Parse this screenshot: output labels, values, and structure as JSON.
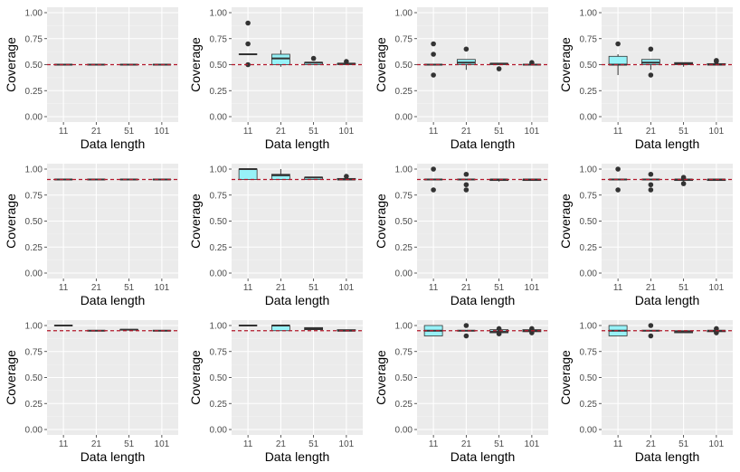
{
  "colors": {
    "panel_bg": "#ebebeb",
    "grid_major": "#ffffff",
    "grid_minor": "#f5f5f5",
    "box_fill": "#97f2f8",
    "box_stroke": "#333333",
    "outlier": "#333333",
    "reference_line": "#b2182b"
  },
  "chart_data": [
    {
      "type": "box",
      "xlabel": "Data length",
      "ylabel": "Coverage",
      "ylim": [
        0,
        1
      ],
      "y_ticks": [
        "0.00",
        "0.25",
        "0.50",
        "0.75",
        "1.00"
      ],
      "y_tick_values": [
        0,
        0.25,
        0.5,
        0.75,
        1
      ],
      "reference": 0.5,
      "categories": [
        "11",
        "21",
        "51",
        "101"
      ],
      "boxes": [
        {
          "lower": 0.5,
          "q1": 0.5,
          "median": 0.5,
          "q3": 0.5,
          "upper": 0.5,
          "outliers": []
        },
        {
          "lower": 0.5,
          "q1": 0.5,
          "median": 0.5,
          "q3": 0.5,
          "upper": 0.5,
          "outliers": []
        },
        {
          "lower": 0.5,
          "q1": 0.5,
          "median": 0.5,
          "q3": 0.5,
          "upper": 0.5,
          "outliers": []
        },
        {
          "lower": 0.5,
          "q1": 0.5,
          "median": 0.5,
          "q3": 0.5,
          "upper": 0.5,
          "outliers": []
        }
      ]
    },
    {
      "type": "box",
      "xlabel": "Data length",
      "ylabel": "Coverage",
      "ylim": [
        0,
        1
      ],
      "y_ticks": [
        "0.00",
        "0.25",
        "0.50",
        "0.75",
        "1.00"
      ],
      "y_tick_values": [
        0,
        0.25,
        0.5,
        0.75,
        1
      ],
      "reference": 0.5,
      "categories": [
        "11",
        "21",
        "51",
        "101"
      ],
      "boxes": [
        {
          "lower": 0.6,
          "q1": 0.6,
          "median": 0.6,
          "q3": 0.6,
          "upper": 0.6,
          "outliers": [
            0.9,
            0.7,
            0.5
          ]
        },
        {
          "lower": 0.48,
          "q1": 0.5,
          "median": 0.56,
          "q3": 0.6,
          "upper": 0.64,
          "outliers": []
        },
        {
          "lower": 0.5,
          "q1": 0.5,
          "median": 0.52,
          "q3": 0.52,
          "upper": 0.52,
          "outliers": [
            0.56
          ]
        },
        {
          "lower": 0.5,
          "q1": 0.5,
          "median": 0.51,
          "q3": 0.51,
          "upper": 0.51,
          "outliers": [
            0.53
          ]
        }
      ]
    },
    {
      "type": "box",
      "xlabel": "Data length",
      "ylabel": "Coverage",
      "ylim": [
        0,
        1
      ],
      "y_ticks": [
        "0.00",
        "0.25",
        "0.50",
        "0.75",
        "1.00"
      ],
      "y_tick_values": [
        0,
        0.25,
        0.5,
        0.75,
        1
      ],
      "reference": 0.5,
      "categories": [
        "11",
        "21",
        "51",
        "101"
      ],
      "boxes": [
        {
          "lower": 0.5,
          "q1": 0.5,
          "median": 0.5,
          "q3": 0.5,
          "upper": 0.5,
          "outliers": [
            0.7,
            0.6,
            0.4
          ]
        },
        {
          "lower": 0.45,
          "q1": 0.5,
          "median": 0.52,
          "q3": 0.55,
          "upper": 0.55,
          "outliers": [
            0.65
          ]
        },
        {
          "lower": 0.5,
          "q1": 0.5,
          "median": 0.51,
          "q3": 0.51,
          "upper": 0.51,
          "outliers": [
            0.46
          ]
        },
        {
          "lower": 0.5,
          "q1": 0.5,
          "median": 0.5,
          "q3": 0.5,
          "upper": 0.5,
          "outliers": [
            0.52
          ]
        }
      ]
    },
    {
      "type": "box",
      "xlabel": "Data length",
      "ylabel": "Coverage",
      "ylim": [
        0,
        1
      ],
      "y_ticks": [
        "0.00",
        "0.25",
        "0.50",
        "0.75",
        "1.00"
      ],
      "y_tick_values": [
        0,
        0.25,
        0.5,
        0.75,
        1
      ],
      "reference": 0.5,
      "categories": [
        "11",
        "21",
        "51",
        "101"
      ],
      "boxes": [
        {
          "lower": 0.4,
          "q1": 0.5,
          "median": 0.5,
          "q3": 0.58,
          "upper": 0.6,
          "outliers": [
            0.7
          ]
        },
        {
          "lower": 0.45,
          "q1": 0.5,
          "median": 0.52,
          "q3": 0.55,
          "upper": 0.55,
          "outliers": [
            0.65,
            0.4
          ]
        },
        {
          "lower": 0.48,
          "q1": 0.5,
          "median": 0.51,
          "q3": 0.52,
          "upper": 0.52,
          "outliers": []
        },
        {
          "lower": 0.5,
          "q1": 0.5,
          "median": 0.5,
          "q3": 0.51,
          "upper": 0.51,
          "outliers": [
            0.54,
            0.53
          ]
        }
      ]
    },
    {
      "type": "box",
      "xlabel": "Data length",
      "ylabel": "Coverage",
      "ylim": [
        0,
        1
      ],
      "y_ticks": [
        "0.00",
        "0.25",
        "0.50",
        "0.75",
        "1.00"
      ],
      "y_tick_values": [
        0,
        0.25,
        0.5,
        0.75,
        1
      ],
      "reference": 0.9,
      "categories": [
        "11",
        "21",
        "51",
        "101"
      ],
      "boxes": [
        {
          "lower": 0.9,
          "q1": 0.9,
          "median": 0.9,
          "q3": 0.9,
          "upper": 0.9,
          "outliers": []
        },
        {
          "lower": 0.9,
          "q1": 0.9,
          "median": 0.9,
          "q3": 0.9,
          "upper": 0.9,
          "outliers": []
        },
        {
          "lower": 0.9,
          "q1": 0.9,
          "median": 0.9,
          "q3": 0.9,
          "upper": 0.9,
          "outliers": []
        },
        {
          "lower": 0.9,
          "q1": 0.9,
          "median": 0.9,
          "q3": 0.9,
          "upper": 0.9,
          "outliers": []
        }
      ]
    },
    {
      "type": "box",
      "xlabel": "Data length",
      "ylabel": "Coverage",
      "ylim": [
        0,
        1
      ],
      "y_ticks": [
        "0.00",
        "0.25",
        "0.50",
        "0.75",
        "1.00"
      ],
      "y_tick_values": [
        0,
        0.25,
        0.5,
        0.75,
        1
      ],
      "reference": 0.9,
      "categories": [
        "11",
        "21",
        "51",
        "101"
      ],
      "boxes": [
        {
          "lower": 0.9,
          "q1": 0.9,
          "median": 1.0,
          "q3": 1.0,
          "upper": 1.0,
          "outliers": []
        },
        {
          "lower": 0.9,
          "q1": 0.9,
          "median": 0.94,
          "q3": 0.95,
          "upper": 1.0,
          "outliers": []
        },
        {
          "lower": 0.9,
          "q1": 0.9,
          "median": 0.92,
          "q3": 0.92,
          "upper": 0.92,
          "outliers": []
        },
        {
          "lower": 0.9,
          "q1": 0.9,
          "median": 0.9,
          "q3": 0.91,
          "upper": 0.91,
          "outliers": [
            0.93
          ]
        }
      ]
    },
    {
      "type": "box",
      "xlabel": "Data length",
      "ylabel": "Coverage",
      "ylim": [
        0,
        1
      ],
      "y_ticks": [
        "0.00",
        "0.25",
        "0.50",
        "0.75",
        "1.00"
      ],
      "y_tick_values": [
        0,
        0.25,
        0.5,
        0.75,
        1
      ],
      "reference": 0.9,
      "categories": [
        "11",
        "21",
        "51",
        "101"
      ],
      "boxes": [
        {
          "lower": 0.9,
          "q1": 0.9,
          "median": 0.9,
          "q3": 0.9,
          "upper": 0.9,
          "outliers": [
            1.0,
            0.8
          ]
        },
        {
          "lower": 0.9,
          "q1": 0.9,
          "median": 0.9,
          "q3": 0.9,
          "upper": 0.9,
          "outliers": [
            0.95,
            0.85,
            0.8
          ]
        },
        {
          "lower": 0.88,
          "q1": 0.89,
          "median": 0.9,
          "q3": 0.9,
          "upper": 0.9,
          "outliers": []
        },
        {
          "lower": 0.89,
          "q1": 0.89,
          "median": 0.9,
          "q3": 0.9,
          "upper": 0.9,
          "outliers": []
        }
      ]
    },
    {
      "type": "box",
      "xlabel": "Data length",
      "ylabel": "Coverage",
      "ylim": [
        0,
        1
      ],
      "y_ticks": [
        "0.00",
        "0.25",
        "0.50",
        "0.75",
        "1.00"
      ],
      "y_tick_values": [
        0,
        0.25,
        0.5,
        0.75,
        1
      ],
      "reference": 0.9,
      "categories": [
        "11",
        "21",
        "51",
        "101"
      ],
      "boxes": [
        {
          "lower": 0.9,
          "q1": 0.9,
          "median": 0.9,
          "q3": 0.9,
          "upper": 0.9,
          "outliers": [
            1.0,
            0.8
          ]
        },
        {
          "lower": 0.9,
          "q1": 0.9,
          "median": 0.9,
          "q3": 0.9,
          "upper": 0.9,
          "outliers": [
            0.95,
            0.85,
            0.8
          ]
        },
        {
          "lower": 0.88,
          "q1": 0.89,
          "median": 0.9,
          "q3": 0.9,
          "upper": 0.9,
          "outliers": [
            0.92,
            0.86
          ]
        },
        {
          "lower": 0.89,
          "q1": 0.89,
          "median": 0.9,
          "q3": 0.9,
          "upper": 0.9,
          "outliers": []
        }
      ]
    },
    {
      "type": "box",
      "xlabel": "Data length",
      "ylabel": "Coverage",
      "ylim": [
        0,
        1
      ],
      "y_ticks": [
        "0.00",
        "0.25",
        "0.50",
        "0.75",
        "1.00"
      ],
      "y_tick_values": [
        0,
        0.25,
        0.5,
        0.75,
        1
      ],
      "reference": 0.95,
      "categories": [
        "11",
        "21",
        "51",
        "101"
      ],
      "boxes": [
        {
          "lower": 1.0,
          "q1": 1.0,
          "median": 1.0,
          "q3": 1.0,
          "upper": 1.0,
          "outliers": []
        },
        {
          "lower": 0.95,
          "q1": 0.95,
          "median": 0.95,
          "q3": 0.95,
          "upper": 0.95,
          "outliers": []
        },
        {
          "lower": 0.96,
          "q1": 0.96,
          "median": 0.96,
          "q3": 0.96,
          "upper": 0.96,
          "outliers": []
        },
        {
          "lower": 0.95,
          "q1": 0.95,
          "median": 0.95,
          "q3": 0.95,
          "upper": 0.95,
          "outliers": []
        }
      ]
    },
    {
      "type": "box",
      "xlabel": "Data length",
      "ylabel": "Coverage",
      "ylim": [
        0,
        1
      ],
      "y_ticks": [
        "0.00",
        "0.25",
        "0.50",
        "0.75",
        "1.00"
      ],
      "y_tick_values": [
        0,
        0.25,
        0.5,
        0.75,
        1
      ],
      "reference": 0.95,
      "categories": [
        "11",
        "21",
        "51",
        "101"
      ],
      "boxes": [
        {
          "lower": 1.0,
          "q1": 1.0,
          "median": 1.0,
          "q3": 1.0,
          "upper": 1.0,
          "outliers": []
        },
        {
          "lower": 0.95,
          "q1": 0.95,
          "median": 1.0,
          "q3": 1.0,
          "upper": 1.0,
          "outliers": []
        },
        {
          "lower": 0.96,
          "q1": 0.96,
          "median": 0.97,
          "q3": 0.98,
          "upper": 0.98,
          "outliers": []
        },
        {
          "lower": 0.95,
          "q1": 0.95,
          "median": 0.95,
          "q3": 0.96,
          "upper": 0.96,
          "outliers": []
        }
      ]
    },
    {
      "type": "box",
      "xlabel": "Data length",
      "ylabel": "Coverage",
      "ylim": [
        0,
        1
      ],
      "y_ticks": [
        "0.00",
        "0.25",
        "0.50",
        "0.75",
        "1.00"
      ],
      "y_tick_values": [
        0,
        0.25,
        0.5,
        0.75,
        1
      ],
      "reference": 0.95,
      "categories": [
        "11",
        "21",
        "51",
        "101"
      ],
      "boxes": [
        {
          "lower": 0.9,
          "q1": 0.9,
          "median": 0.95,
          "q3": 1.0,
          "upper": 1.0,
          "outliers": []
        },
        {
          "lower": 0.95,
          "q1": 0.95,
          "median": 0.95,
          "q3": 0.95,
          "upper": 0.95,
          "outliers": [
            1.0,
            0.9
          ]
        },
        {
          "lower": 0.93,
          "q1": 0.93,
          "median": 0.94,
          "q3": 0.96,
          "upper": 0.96,
          "outliers": [
            0.97,
            0.92
          ]
        },
        {
          "lower": 0.94,
          "q1": 0.94,
          "median": 0.95,
          "q3": 0.96,
          "upper": 0.96,
          "outliers": [
            0.97,
            0.93
          ]
        }
      ]
    },
    {
      "type": "box",
      "xlabel": "Data length",
      "ylabel": "Coverage",
      "ylim": [
        0,
        1
      ],
      "y_ticks": [
        "0.00",
        "0.25",
        "0.50",
        "0.75",
        "1.00"
      ],
      "y_tick_values": [
        0,
        0.25,
        0.5,
        0.75,
        1
      ],
      "reference": 0.95,
      "categories": [
        "11",
        "21",
        "51",
        "101"
      ],
      "boxes": [
        {
          "lower": 0.9,
          "q1": 0.9,
          "median": 0.95,
          "q3": 1.0,
          "upper": 1.0,
          "outliers": []
        },
        {
          "lower": 0.95,
          "q1": 0.95,
          "median": 0.95,
          "q3": 0.95,
          "upper": 0.95,
          "outliers": [
            1.0,
            0.9
          ]
        },
        {
          "lower": 0.93,
          "q1": 0.93,
          "median": 0.94,
          "q3": 0.95,
          "upper": 0.95,
          "outliers": []
        },
        {
          "lower": 0.94,
          "q1": 0.94,
          "median": 0.95,
          "q3": 0.95,
          "upper": 0.95,
          "outliers": [
            0.97,
            0.93
          ]
        }
      ]
    }
  ]
}
